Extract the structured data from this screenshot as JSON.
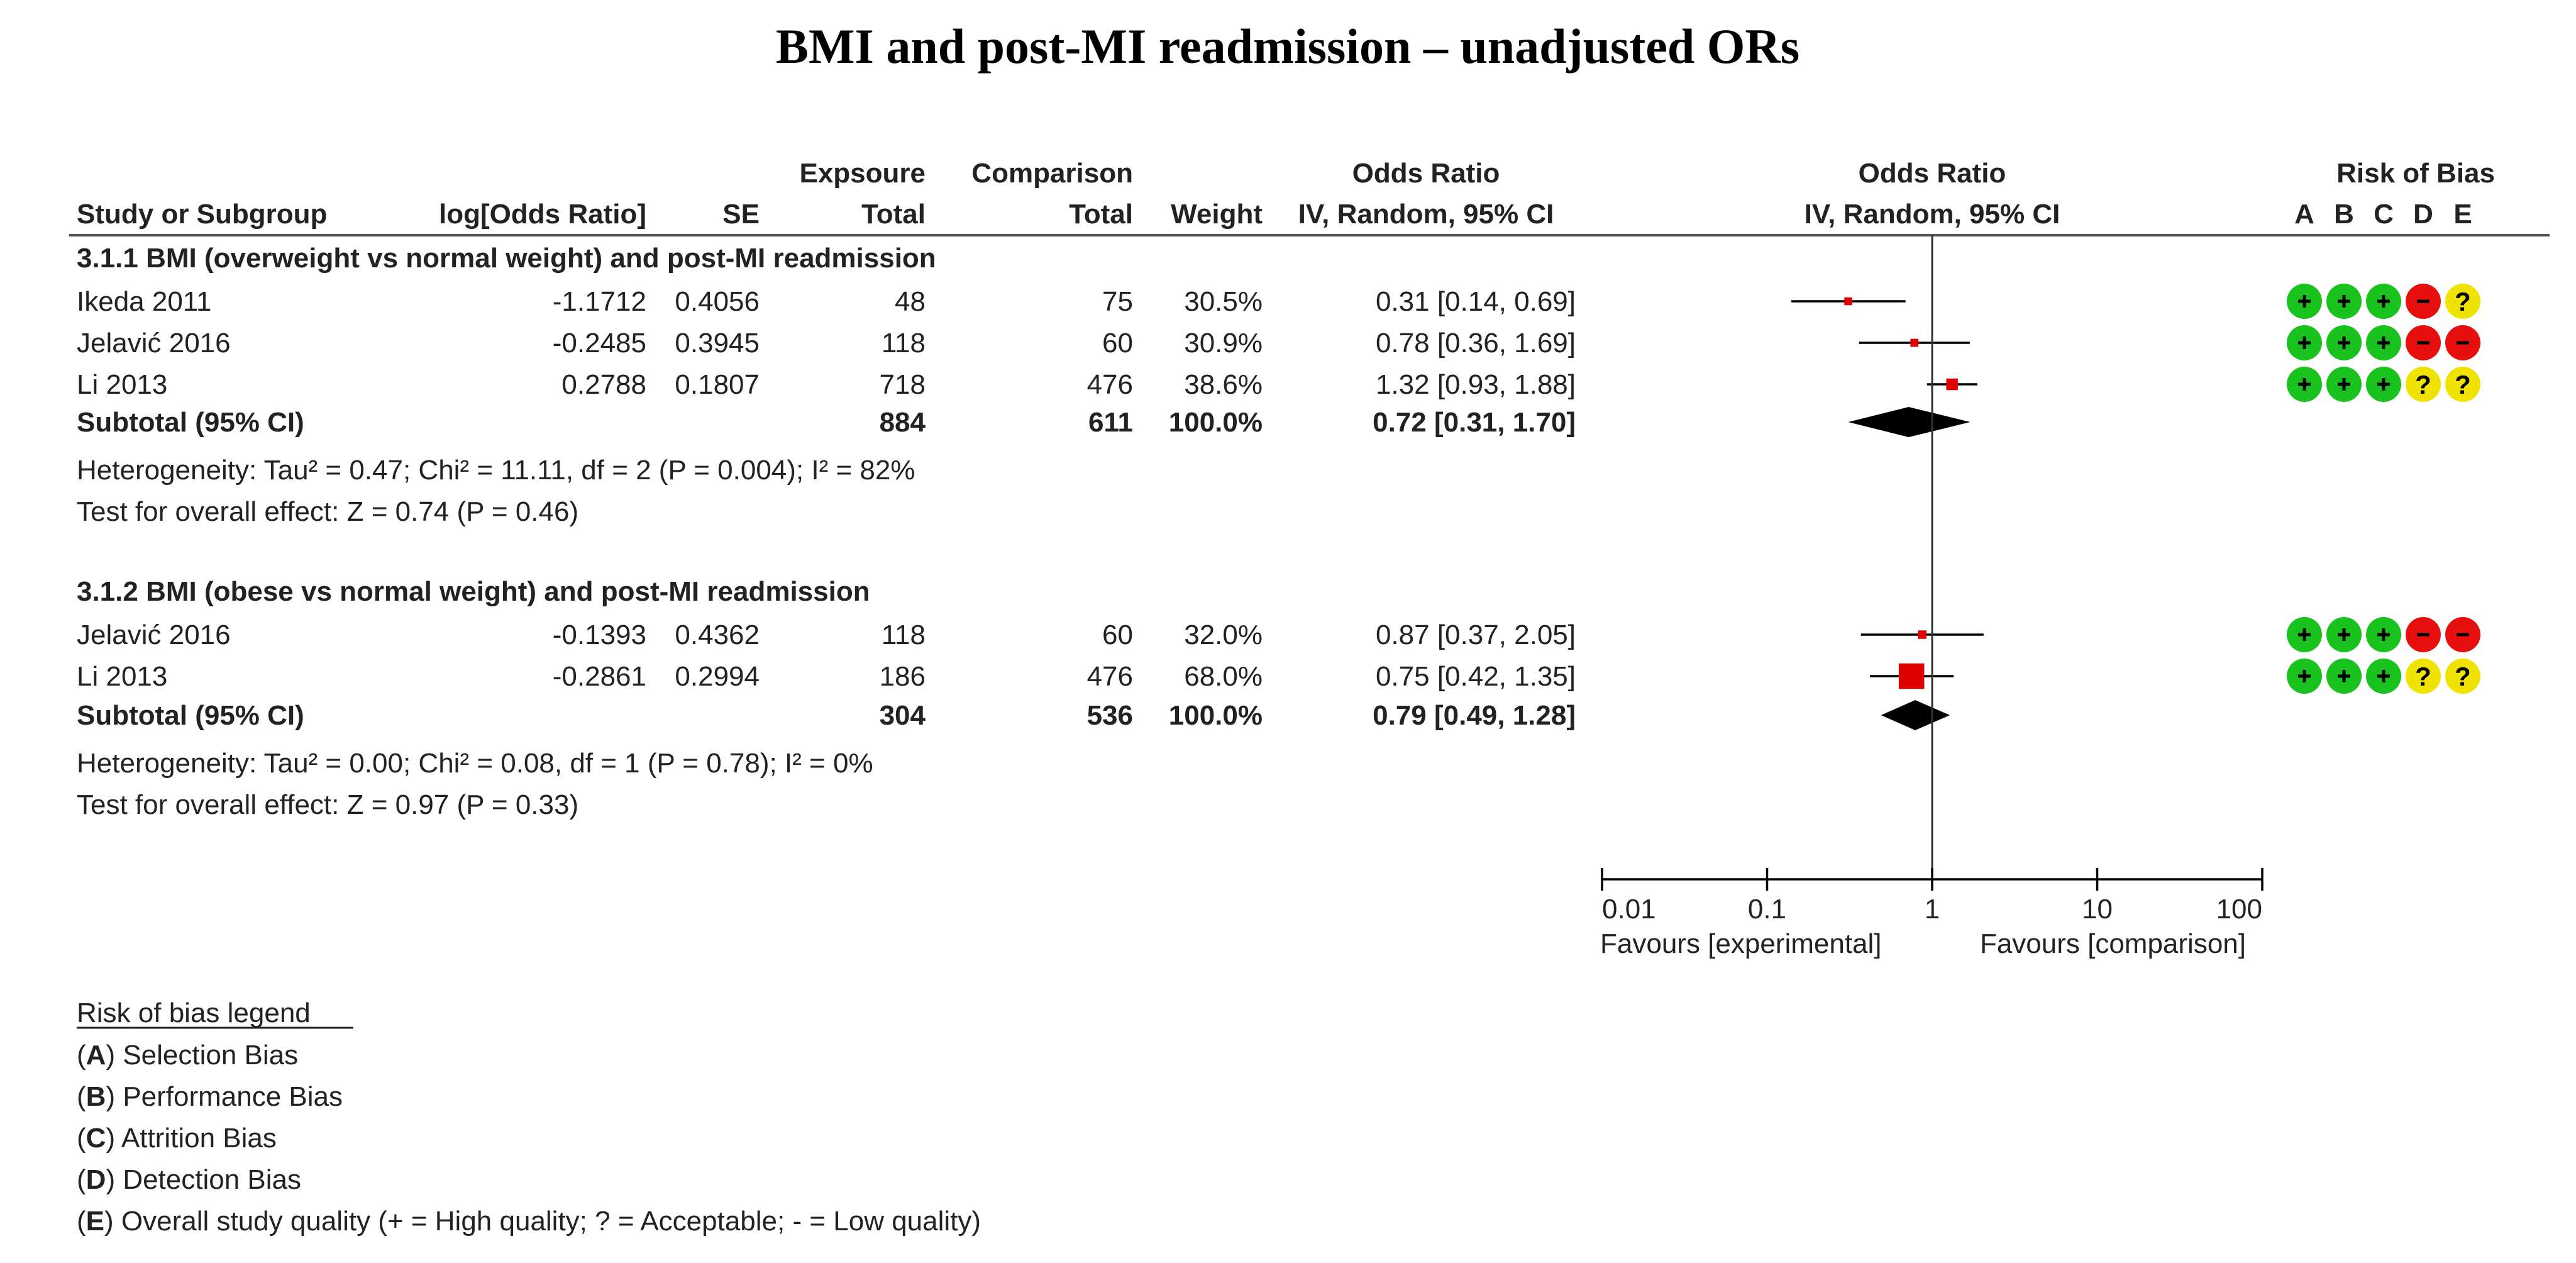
{
  "chart_data": {
    "type": "forest",
    "title": "BMI and post-MI readmission  – unadjusted ORs",
    "header_top": {
      "exposure": "Expsoure",
      "comparison": "Comparison",
      "or_col": "Odds Ratio",
      "or_plot": "Odds Ratio",
      "risk_of_bias": "Risk of Bias"
    },
    "header_bottom": {
      "study": "Study or Subgroup",
      "log_or": "log[Odds Ratio]",
      "se": "SE",
      "exp_total": "Total",
      "comp_total": "Total",
      "weight": "Weight",
      "or_col": "IV, Random, 95% CI",
      "or_plot": "IV, Random, 95% CI",
      "rob_letters": [
        "A",
        "B",
        "C",
        "D",
        "E"
      ]
    },
    "x_axis": {
      "scale": "log",
      "min": 0.01,
      "max": 100,
      "ticks": [
        0.01,
        0.1,
        1,
        10,
        100
      ],
      "tick_labels": [
        "0.01",
        "0.1",
        "1",
        "10",
        "100"
      ],
      "left_label": "Favours [experimental]",
      "right_label": "Favours [comparison]"
    },
    "groups": [
      {
        "title": "3.1.1 BMI (overweight vs normal weight) and post-MI readmission",
        "studies": [
          {
            "name": "Ikeda 2011",
            "log_or": "-1.1712",
            "se": "0.4056",
            "exp_total": "48",
            "comp_total": "75",
            "weight": "30.5%",
            "ci_text": "0.31 [0.14, 0.69]",
            "or": 0.31,
            "lo": 0.14,
            "hi": 0.69,
            "w": 30.5,
            "rob": [
              "+",
              "+",
              "+",
              "-",
              "?"
            ]
          },
          {
            "name": "Jelavić 2016",
            "log_or": "-0.2485",
            "se": "0.3945",
            "exp_total": "118",
            "comp_total": "60",
            "weight": "30.9%",
            "ci_text": "0.78 [0.36, 1.69]",
            "or": 0.78,
            "lo": 0.36,
            "hi": 1.69,
            "w": 30.9,
            "rob": [
              "+",
              "+",
              "+",
              "-",
              "-"
            ]
          },
          {
            "name": "Li 2013",
            "log_or": "0.2788",
            "se": "0.1807",
            "exp_total": "718",
            "comp_total": "476",
            "weight": "38.6%",
            "ci_text": "1.32 [0.93, 1.88]",
            "or": 1.32,
            "lo": 0.93,
            "hi": 1.88,
            "w": 38.6,
            "rob": [
              "+",
              "+",
              "+",
              "?",
              "?"
            ]
          }
        ],
        "subtotal": {
          "label": "Subtotal (95% CI)",
          "exp_total": "884",
          "comp_total": "611",
          "weight": "100.0%",
          "ci_text": "0.72 [0.31, 1.70]",
          "or": 0.72,
          "lo": 0.31,
          "hi": 1.7
        },
        "heterogeneity": "Heterogeneity: Tau² = 0.47; Chi² = 11.11, df = 2 (P = 0.004); I² = 82%",
        "overall": "Test for overall effect: Z = 0.74 (P = 0.46)"
      },
      {
        "title": "3.1.2 BMI (obese vs normal weight) and post-MI readmission",
        "studies": [
          {
            "name": "Jelavić 2016",
            "log_or": "-0.1393",
            "se": "0.4362",
            "exp_total": "118",
            "comp_total": "60",
            "weight": "32.0%",
            "ci_text": "0.87 [0.37, 2.05]",
            "or": 0.87,
            "lo": 0.37,
            "hi": 2.05,
            "w": 32.0,
            "rob": [
              "+",
              "+",
              "+",
              "-",
              "-"
            ]
          },
          {
            "name": "Li 2013",
            "log_or": "-0.2861",
            "se": "0.2994",
            "exp_total": "186",
            "comp_total": "476",
            "weight": "68.0%",
            "ci_text": "0.75 [0.42, 1.35]",
            "or": 0.75,
            "lo": 0.42,
            "hi": 1.35,
            "w": 68.0,
            "rob": [
              "+",
              "+",
              "+",
              "?",
              "?"
            ]
          }
        ],
        "subtotal": {
          "label": "Subtotal (95% CI)",
          "exp_total": "304",
          "comp_total": "536",
          "weight": "100.0%",
          "ci_text": "0.79 [0.49, 1.28]",
          "or": 0.79,
          "lo": 0.49,
          "hi": 1.28
        },
        "heterogeneity": "Heterogeneity: Tau² = 0.00; Chi² = 0.08, df = 1 (P = 0.78); I² = 0%",
        "overall": "Test for overall effect: Z = 0.97 (P = 0.33)"
      }
    ],
    "legend": {
      "title": "Risk of bias legend",
      "items": [
        {
          "key": "A",
          "label": " Selection Bias"
        },
        {
          "key": "B",
          "label": " Performance Bias"
        },
        {
          "key": "C",
          "label": " Attrition Bias"
        },
        {
          "key": "D",
          "label": " Detection Bias"
        },
        {
          "key": "E",
          "label": " Overall study quality (+ = High quality; ? = Acceptable; - = Low quality)"
        }
      ]
    },
    "colors": {
      "low": "#e8100e",
      "high": "#19c21c",
      "unclear": "#f0e300",
      "marker": "#e00000",
      "text": "#222222"
    }
  }
}
